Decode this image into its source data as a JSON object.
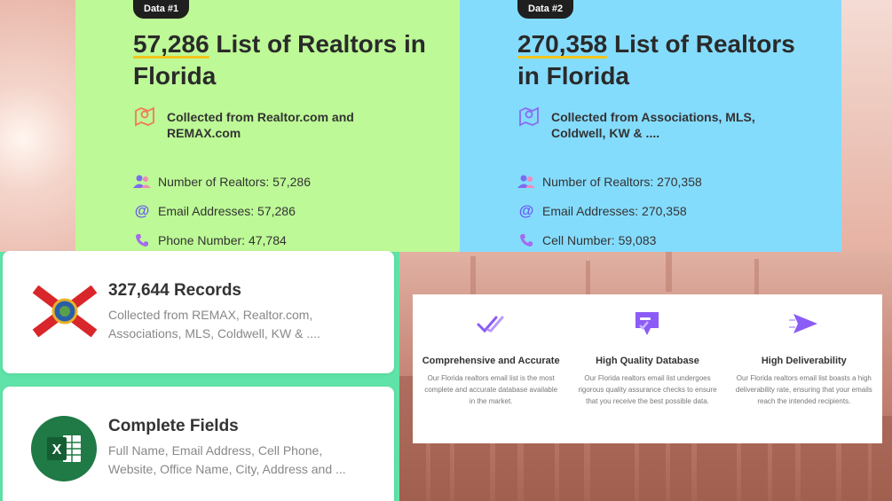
{
  "panels": [
    {
      "tag": "Data #1",
      "number": "57,286",
      "heading_rest": " List of Realtors in Florida",
      "source": "Collected from Realtor.com and REMAX.com",
      "metrics": [
        {
          "icon": "users-icon",
          "label": "Number of Realtors: 57,286"
        },
        {
          "icon": "at-icon",
          "label": "Email Addresses: 57,286"
        },
        {
          "icon": "phone-icon",
          "label": "Phone Number: 47,784"
        }
      ]
    },
    {
      "tag": "Data #2",
      "number": "270,358",
      "heading_rest": " List of Realtors in Florida",
      "source": "Collected from Associations, MLS, Coldwell, KW & ....",
      "metrics": [
        {
          "icon": "users-icon",
          "label": "Number of Realtors: 270,358"
        },
        {
          "icon": "at-icon",
          "label": "Email Addresses: 270,358"
        },
        {
          "icon": "phone-icon",
          "label": "Cell Number: 59,083"
        }
      ]
    }
  ],
  "cards": [
    {
      "icon": "florida-flag-icon",
      "title": "327,644 Records",
      "desc": "Collected from REMAX, Realtor.com, Associations, MLS, Coldwell, KW & ...."
    },
    {
      "icon": "excel-icon",
      "title": "Complete Fields",
      "desc": "Full Name, Email Address, Cell Phone, Website, Office Name, City, Address and ..."
    }
  ],
  "features": [
    {
      "icon": "double-check-icon",
      "title": "Comprehensive and Accurate",
      "desc": "Our Florida realtors email list is the most complete and accurate database available in the market."
    },
    {
      "icon": "database-badge-icon",
      "title": "High Quality Database",
      "desc": "Our Florida realtors email list undergoes rigorous quality assurance checks to ensure that you receive the best possible data."
    },
    {
      "icon": "send-icon",
      "title": "High Deliverability",
      "desc": "Our Florida realtors email list boasts a high deliverability rate, ensuring that your emails reach the intended recipients."
    }
  ],
  "colors": {
    "green_panel": "#bdf996",
    "blue_panel": "#84dcfd",
    "underline": "#f4c41a",
    "accent_purple": "#8b5cf6"
  }
}
